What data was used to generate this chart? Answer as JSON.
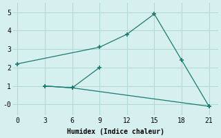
{
  "line1_x": [
    0,
    9,
    12,
    15,
    18,
    21
  ],
  "line1_y": [
    2.2,
    3.1,
    3.8,
    4.9,
    2.4,
    -0.1
  ],
  "line2_x": [
    3,
    6,
    9
  ],
  "line2_y": [
    1.0,
    0.9,
    2.0
  ],
  "line3_x": [
    3,
    6,
    21
  ],
  "line3_y": [
    1.0,
    0.9,
    -0.1
  ],
  "color": "#1a7a6e",
  "bg_color": "#d6f0ef",
  "grid_color": "#b0d8d4",
  "xlabel": "Humidex (Indice chaleur)",
  "xlim": [
    -0.5,
    22
  ],
  "ylim": [
    -0.6,
    5.5
  ],
  "xticks": [
    0,
    3,
    6,
    9,
    12,
    15,
    18,
    21
  ],
  "yticks": [
    0,
    1,
    2,
    3,
    4,
    5
  ],
  "ytick_labels": [
    "-0",
    "1",
    "2",
    "3",
    "4",
    "5"
  ],
  "marker": "+",
  "markersize": 5,
  "linewidth": 0.9,
  "tick_fontsize": 7,
  "xlabel_fontsize": 7
}
